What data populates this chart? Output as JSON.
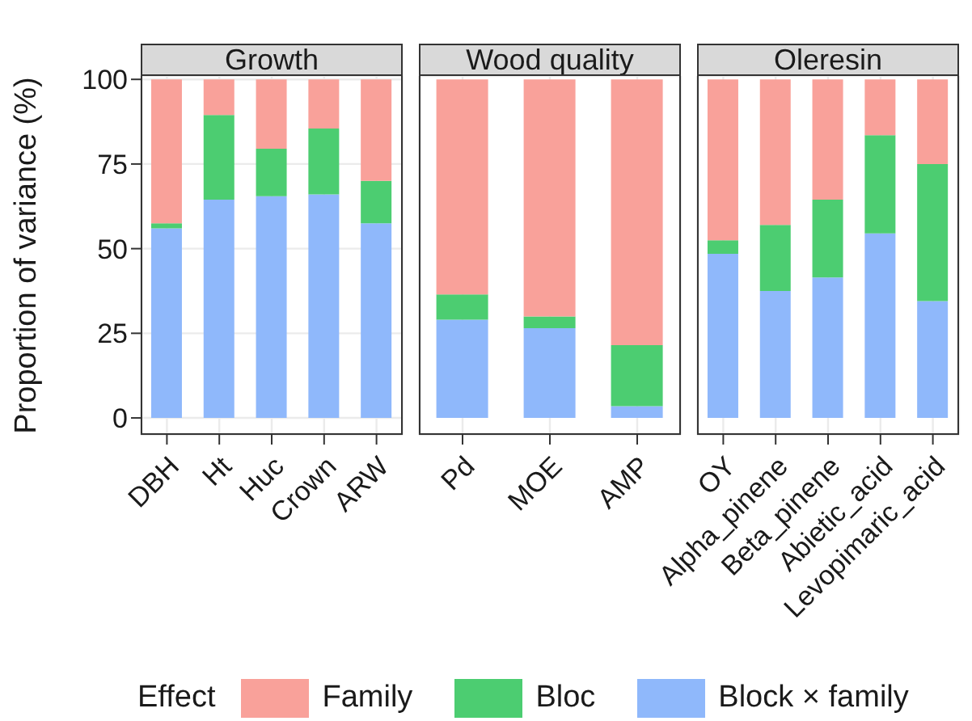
{
  "chart_data": [
    {
      "type": "bar",
      "title": "Growth",
      "ylabel": "Proportion of variance (%)",
      "legend_title": "Effect",
      "categories": [
        "DBH",
        "Ht",
        "Huc",
        "Crown",
        "ARW"
      ],
      "stacked": true,
      "ylim": [
        -5,
        101
      ],
      "yticks": [
        0,
        25,
        50,
        75,
        100
      ],
      "grid": true,
      "legend": "bottom",
      "series": [
        {
          "name": "Block × family",
          "color": "#8fb8fb",
          "values": [
            56,
            64.5,
            65.5,
            66,
            57.5
          ]
        },
        {
          "name": "Bloc",
          "color": "#4ccd71",
          "values": [
            1.5,
            25,
            14,
            19.5,
            12.5
          ]
        },
        {
          "name": "Family",
          "color": "#f9a19a",
          "values": [
            42.5,
            10.5,
            20.5,
            14.5,
            30
          ]
        }
      ]
    },
    {
      "type": "bar",
      "title": "Wood quality",
      "categories": [
        "Pd",
        "MOE",
        "AMP"
      ],
      "stacked": true,
      "ylim": [
        -5,
        101
      ],
      "yticks": [
        0,
        25,
        50,
        75,
        100
      ],
      "grid": true,
      "tick_labels": "x",
      "series": [
        {
          "color": "#8fb8fb",
          "values": [
            29,
            26.5,
            3.5
          ]
        },
        {
          "color": "#4ccd71",
          "values": [
            7.5,
            3.5,
            18
          ]
        },
        {
          "color": "#f9a19a",
          "values": [
            63.5,
            70,
            78.5
          ]
        }
      ]
    },
    {
      "type": "bar",
      "title": "Oleresin",
      "categories": [
        "OY",
        "Alpha_pinene",
        "Beta_pinene",
        "Abietic_acid",
        "Levopimaric_acid"
      ],
      "stacked": true,
      "ylim": [
        -5,
        101
      ],
      "yticks": [
        0,
        25,
        50,
        75,
        100
      ],
      "grid": true,
      "tick_labels": "x",
      "series": [
        {
          "color": "#8fb8fb",
          "values": [
            48.5,
            37.5,
            41.5,
            54.5,
            34.5
          ]
        },
        {
          "color": "#4ccd71",
          "values": [
            4,
            19.5,
            23,
            29,
            40.5
          ]
        },
        {
          "color": "#f9a19a",
          "values": [
            47.5,
            43,
            35.5,
            16.5,
            25
          ]
        }
      ]
    }
  ]
}
